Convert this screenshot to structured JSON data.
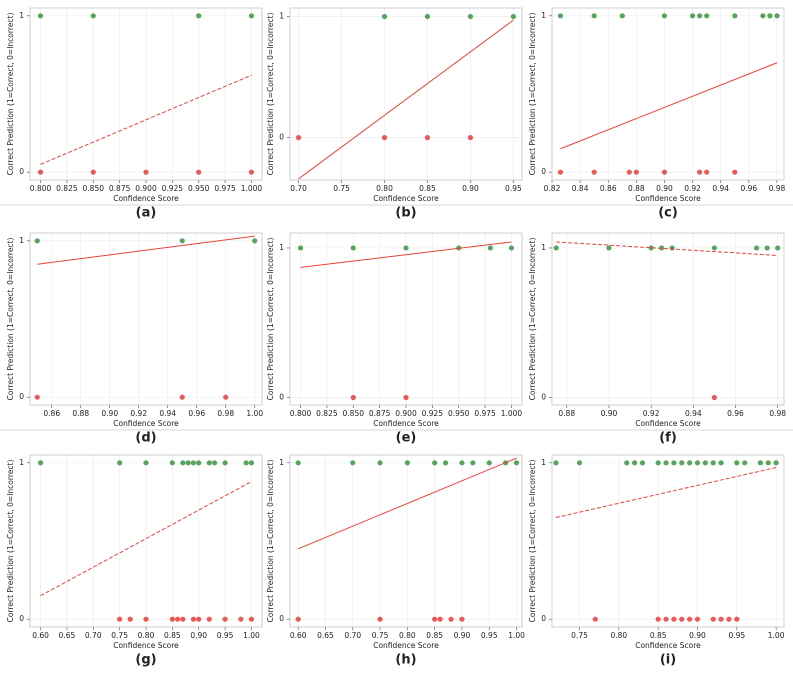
{
  "chart_data": [
    {
      "type": "scatter",
      "caption": "(a)",
      "xlabel": "Confidence Score",
      "ylabel": "Correct Prediction (1=Correct, 0=Incorrect)",
      "grid": true,
      "xlim": [
        0.79,
        1.01
      ],
      "xticks": [
        {
          "value": 0.8,
          "label": "0.800"
        },
        {
          "value": 0.825,
          "label": "0.825"
        },
        {
          "value": 0.85,
          "label": "0.850"
        },
        {
          "value": 0.875,
          "label": "0.875"
        },
        {
          "value": 0.9,
          "label": "0.900"
        },
        {
          "value": 0.925,
          "label": "0.925"
        },
        {
          "value": 0.95,
          "label": "0.950"
        },
        {
          "value": 0.975,
          "label": "0.975"
        },
        {
          "value": 1.0,
          "label": "1.000"
        }
      ],
      "ylim": [
        -0.05,
        1.05
      ],
      "yticks": [
        0,
        1
      ],
      "series": [
        {
          "color": "#1f8a2a",
          "x": [
            0.8,
            0.85,
            0.95,
            1.0
          ],
          "values": [
            1,
            1,
            1,
            1
          ]
        },
        {
          "color": "#e8221f",
          "x": [
            0.8,
            0.85,
            0.9,
            0.95,
            1.0
          ],
          "values": [
            0,
            0,
            0,
            0,
            0
          ]
        }
      ],
      "trend": {
        "color": "#e8433a",
        "linestyle": "dashed",
        "x": [
          0.8,
          1.0
        ],
        "values": [
          0.05,
          0.62
        ]
      }
    },
    {
      "type": "scatter",
      "caption": "(b)",
      "xlabel": "Confidence Score",
      "ylabel": "Correct Prediction (1=Correct, 0=Incorrect)",
      "grid": true,
      "xlim": [
        0.69,
        0.96
      ],
      "xticks": [
        {
          "value": 0.7,
          "label": "0.70"
        },
        {
          "value": 0.75,
          "label": "0.75"
        },
        {
          "value": 0.8,
          "label": "0.80"
        },
        {
          "value": 0.85,
          "label": "0.85"
        },
        {
          "value": 0.9,
          "label": "0.90"
        },
        {
          "value": 0.95,
          "label": "0.95"
        }
      ],
      "ylim": [
        -0.35,
        1.07
      ],
      "yticks": [
        0,
        1
      ],
      "series": [
        {
          "color": "#1f8a2a",
          "x": [
            0.8,
            0.85,
            0.9,
            0.95
          ],
          "values": [
            1,
            1,
            1,
            1
          ]
        },
        {
          "color": "#e8221f",
          "x": [
            0.7,
            0.8,
            0.85,
            0.9
          ],
          "values": [
            0,
            0,
            0,
            0
          ]
        }
      ],
      "trend": {
        "color": "#e8433a",
        "linestyle": "solid",
        "x": [
          0.7,
          0.95
        ],
        "values": [
          -0.34,
          0.97
        ]
      }
    },
    {
      "type": "scatter",
      "caption": "(c)",
      "xlabel": "Confidence Score",
      "ylabel": "Correct Prediction (1=Correct, 0=Incorrect)",
      "grid": true,
      "xlim": [
        0.82,
        0.985
      ],
      "xticks": [
        {
          "value": 0.82,
          "label": "0.82"
        },
        {
          "value": 0.84,
          "label": "0.84"
        },
        {
          "value": 0.86,
          "label": "0.86"
        },
        {
          "value": 0.88,
          "label": "0.88"
        },
        {
          "value": 0.9,
          "label": "0.90"
        },
        {
          "value": 0.92,
          "label": "0.92"
        },
        {
          "value": 0.94,
          "label": "0.94"
        },
        {
          "value": 0.96,
          "label": "0.96"
        },
        {
          "value": 0.98,
          "label": "0.98"
        }
      ],
      "ylim": [
        -0.05,
        1.05
      ],
      "yticks": [
        0,
        1
      ],
      "series": [
        {
          "color": "#1f8a2a",
          "x": [
            0.826,
            0.85,
            0.87,
            0.9,
            0.92,
            0.925,
            0.93,
            0.95,
            0.97,
            0.975,
            0.98
          ],
          "values": [
            1,
            1,
            1,
            1,
            1,
            1,
            1,
            1,
            1,
            1,
            1
          ]
        },
        {
          "color": "#e8221f",
          "x": [
            0.826,
            0.85,
            0.875,
            0.88,
            0.9,
            0.925,
            0.93,
            0.95
          ],
          "values": [
            0,
            0,
            0,
            0,
            0,
            0,
            0,
            0
          ]
        }
      ],
      "trend": {
        "color": "#e8433a",
        "linestyle": "solid",
        "x": [
          0.826,
          0.98
        ],
        "values": [
          0.15,
          0.7
        ]
      }
    },
    {
      "type": "scatter",
      "caption": "(d)",
      "xlabel": "Confidence Score",
      "ylabel": "Correct Prediction (1=Correct, 0=Incorrect)",
      "grid": true,
      "xlim": [
        0.845,
        1.005
      ],
      "xticks": [
        {
          "value": 0.86,
          "label": "0.86"
        },
        {
          "value": 0.88,
          "label": "0.88"
        },
        {
          "value": 0.9,
          "label": "0.90"
        },
        {
          "value": 0.92,
          "label": "0.92"
        },
        {
          "value": 0.94,
          "label": "0.94"
        },
        {
          "value": 0.96,
          "label": "0.96"
        },
        {
          "value": 0.98,
          "label": "0.98"
        },
        {
          "value": 1.0,
          "label": "1.00"
        }
      ],
      "ylim": [
        -0.05,
        1.05
      ],
      "yticks": [
        0,
        1
      ],
      "series": [
        {
          "color": "#1f8a2a",
          "x": [
            0.85,
            0.95,
            1.0
          ],
          "values": [
            1,
            1,
            1
          ]
        },
        {
          "color": "#e8221f",
          "x": [
            0.85,
            0.95,
            0.98
          ],
          "values": [
            0,
            0,
            0
          ]
        }
      ],
      "trend": {
        "color": "#e8433a",
        "linestyle": "solid",
        "x": [
          0.85,
          1.0
        ],
        "values": [
          0.85,
          1.03
        ]
      }
    },
    {
      "type": "scatter",
      "caption": "(e)",
      "xlabel": "Confidence Score",
      "ylabel": "Correct Prediction (1=Correct, 0=Incorrect)",
      "grid": true,
      "xlim": [
        0.79,
        1.01
      ],
      "xticks": [
        {
          "value": 0.8,
          "label": "0.800"
        },
        {
          "value": 0.825,
          "label": "0.825"
        },
        {
          "value": 0.85,
          "label": "0.850"
        },
        {
          "value": 0.875,
          "label": "0.875"
        },
        {
          "value": 0.9,
          "label": "0.900"
        },
        {
          "value": 0.925,
          "label": "0.925"
        },
        {
          "value": 0.95,
          "label": "0.950"
        },
        {
          "value": 0.975,
          "label": "0.975"
        },
        {
          "value": 1.0,
          "label": "1.000"
        }
      ],
      "ylim": [
        -0.05,
        1.1
      ],
      "yticks": [
        0,
        1
      ],
      "series": [
        {
          "color": "#1f8a2a",
          "x": [
            0.8,
            0.85,
            0.9,
            0.95,
            0.98,
            1.0
          ],
          "values": [
            1,
            1,
            1,
            1,
            1,
            1
          ]
        },
        {
          "color": "#e8221f",
          "x": [
            0.85,
            0.9
          ],
          "values": [
            0,
            0
          ]
        }
      ],
      "trend": {
        "color": "#e8433a",
        "linestyle": "solid",
        "x": [
          0.8,
          1.0
        ],
        "values": [
          0.87,
          1.04
        ]
      }
    },
    {
      "type": "scatter",
      "caption": "(f)",
      "xlabel": "Confidence Score",
      "ylabel": "Correct Prediction (1=Correct, 0=Incorrect)",
      "grid": true,
      "xlim": [
        0.873,
        0.983
      ],
      "xticks": [
        {
          "value": 0.88,
          "label": "0.88"
        },
        {
          "value": 0.9,
          "label": "0.90"
        },
        {
          "value": 0.92,
          "label": "0.92"
        },
        {
          "value": 0.94,
          "label": "0.94"
        },
        {
          "value": 0.96,
          "label": "0.96"
        },
        {
          "value": 0.98,
          "label": "0.98"
        }
      ],
      "ylim": [
        -0.05,
        1.1
      ],
      "yticks": [
        0,
        1
      ],
      "series": [
        {
          "color": "#1f8a2a",
          "x": [
            0.875,
            0.9,
            0.92,
            0.925,
            0.93,
            0.95,
            0.97,
            0.975,
            0.98
          ],
          "values": [
            1,
            1,
            1,
            1,
            1,
            1,
            1,
            1,
            1
          ]
        },
        {
          "color": "#e8221f",
          "x": [
            0.95
          ],
          "values": [
            0
          ]
        }
      ],
      "trend": {
        "color": "#e8433a",
        "linestyle": "dashed",
        "x": [
          0.875,
          0.98
        ],
        "values": [
          1.04,
          0.95
        ]
      }
    },
    {
      "type": "scatter",
      "caption": "(g)",
      "xlabel": "Confidence Score",
      "ylabel": "Correct Prediction (1=Correct, 0=Incorrect)",
      "grid": true,
      "xlim": [
        0.58,
        1.02
      ],
      "xticks": [
        {
          "value": 0.6,
          "label": "0.60"
        },
        {
          "value": 0.65,
          "label": "0.65"
        },
        {
          "value": 0.7,
          "label": "0.70"
        },
        {
          "value": 0.75,
          "label": "0.75"
        },
        {
          "value": 0.8,
          "label": "0.80"
        },
        {
          "value": 0.85,
          "label": "0.85"
        },
        {
          "value": 0.9,
          "label": "0.90"
        },
        {
          "value": 0.95,
          "label": "0.95"
        },
        {
          "value": 1.0,
          "label": "1.00"
        }
      ],
      "ylim": [
        -0.05,
        1.05
      ],
      "yticks": [
        0,
        1
      ],
      "series": [
        {
          "color": "#1f8a2a",
          "x": [
            0.6,
            0.75,
            0.8,
            0.85,
            0.87,
            0.88,
            0.89,
            0.9,
            0.92,
            0.93,
            0.95,
            0.99,
            1.0
          ],
          "values": [
            1,
            1,
            1,
            1,
            1,
            1,
            1,
            1,
            1,
            1,
            1,
            1,
            1
          ]
        },
        {
          "color": "#e8221f",
          "x": [
            0.75,
            0.77,
            0.8,
            0.85,
            0.86,
            0.87,
            0.89,
            0.9,
            0.92,
            0.95,
            0.98,
            1.0
          ],
          "values": [
            0,
            0,
            0,
            0,
            0,
            0,
            0,
            0,
            0,
            0,
            0,
            0
          ]
        }
      ],
      "trend": {
        "color": "#e8433a",
        "linestyle": "dashed",
        "x": [
          0.6,
          1.0
        ],
        "values": [
          0.15,
          0.88
        ]
      }
    },
    {
      "type": "scatter",
      "caption": "(h)",
      "xlabel": "Confidence Score",
      "ylabel": "Correct Prediction (1=Correct, 0=Incorrect)",
      "grid": true,
      "xlim": [
        0.585,
        1.01
      ],
      "xticks": [
        {
          "value": 0.6,
          "label": "0.60"
        },
        {
          "value": 0.65,
          "label": "0.65"
        },
        {
          "value": 0.7,
          "label": "0.70"
        },
        {
          "value": 0.75,
          "label": "0.75"
        },
        {
          "value": 0.8,
          "label": "0.80"
        },
        {
          "value": 0.85,
          "label": "0.85"
        },
        {
          "value": 0.9,
          "label": "0.90"
        },
        {
          "value": 0.95,
          "label": "0.95"
        },
        {
          "value": 1.0,
          "label": "1.00"
        }
      ],
      "ylim": [
        -0.05,
        1.05
      ],
      "yticks": [
        0,
        1
      ],
      "series": [
        {
          "color": "#1f8a2a",
          "x": [
            0.6,
            0.7,
            0.75,
            0.8,
            0.85,
            0.87,
            0.9,
            0.92,
            0.95,
            0.98,
            1.0
          ],
          "values": [
            1,
            1,
            1,
            1,
            1,
            1,
            1,
            1,
            1,
            1,
            1
          ]
        },
        {
          "color": "#e8221f",
          "x": [
            0.6,
            0.75,
            0.85,
            0.86,
            0.88,
            0.9
          ],
          "values": [
            0,
            0,
            0,
            0,
            0,
            0
          ]
        }
      ],
      "trend": {
        "color": "#e8433a",
        "linestyle": "solid",
        "x": [
          0.6,
          1.0
        ],
        "values": [
          0.45,
          1.03
        ]
      }
    },
    {
      "type": "scatter",
      "caption": "(i)",
      "xlabel": "Confidence Score",
      "ylabel": "Correct Prediction (1=Correct, 0=Incorrect)",
      "grid": true,
      "xlim": [
        0.715,
        1.01
      ],
      "xticks": [
        {
          "value": 0.75,
          "label": "0.75"
        },
        {
          "value": 0.8,
          "label": "0.80"
        },
        {
          "value": 0.85,
          "label": "0.85"
        },
        {
          "value": 0.9,
          "label": "0.90"
        },
        {
          "value": 0.95,
          "label": "0.95"
        },
        {
          "value": 1.0,
          "label": "1.00"
        }
      ],
      "ylim": [
        -0.05,
        1.05
      ],
      "yticks": [
        0,
        1
      ],
      "series": [
        {
          "color": "#1f8a2a",
          "x": [
            0.72,
            0.75,
            0.81,
            0.82,
            0.83,
            0.85,
            0.86,
            0.87,
            0.88,
            0.89,
            0.9,
            0.91,
            0.92,
            0.93,
            0.95,
            0.96,
            0.98,
            0.99,
            1.0
          ],
          "values": [
            1,
            1,
            1,
            1,
            1,
            1,
            1,
            1,
            1,
            1,
            1,
            1,
            1,
            1,
            1,
            1,
            1,
            1,
            1
          ]
        },
        {
          "color": "#e8221f",
          "x": [
            0.77,
            0.85,
            0.86,
            0.87,
            0.88,
            0.89,
            0.9,
            0.92,
            0.93,
            0.94,
            0.95
          ],
          "values": [
            0,
            0,
            0,
            0,
            0,
            0,
            0,
            0,
            0,
            0,
            0
          ]
        }
      ],
      "trend": {
        "color": "#e8433a",
        "linestyle": "dashed",
        "x": [
          0.72,
          1.0
        ],
        "values": [
          0.65,
          0.97
        ]
      }
    }
  ]
}
